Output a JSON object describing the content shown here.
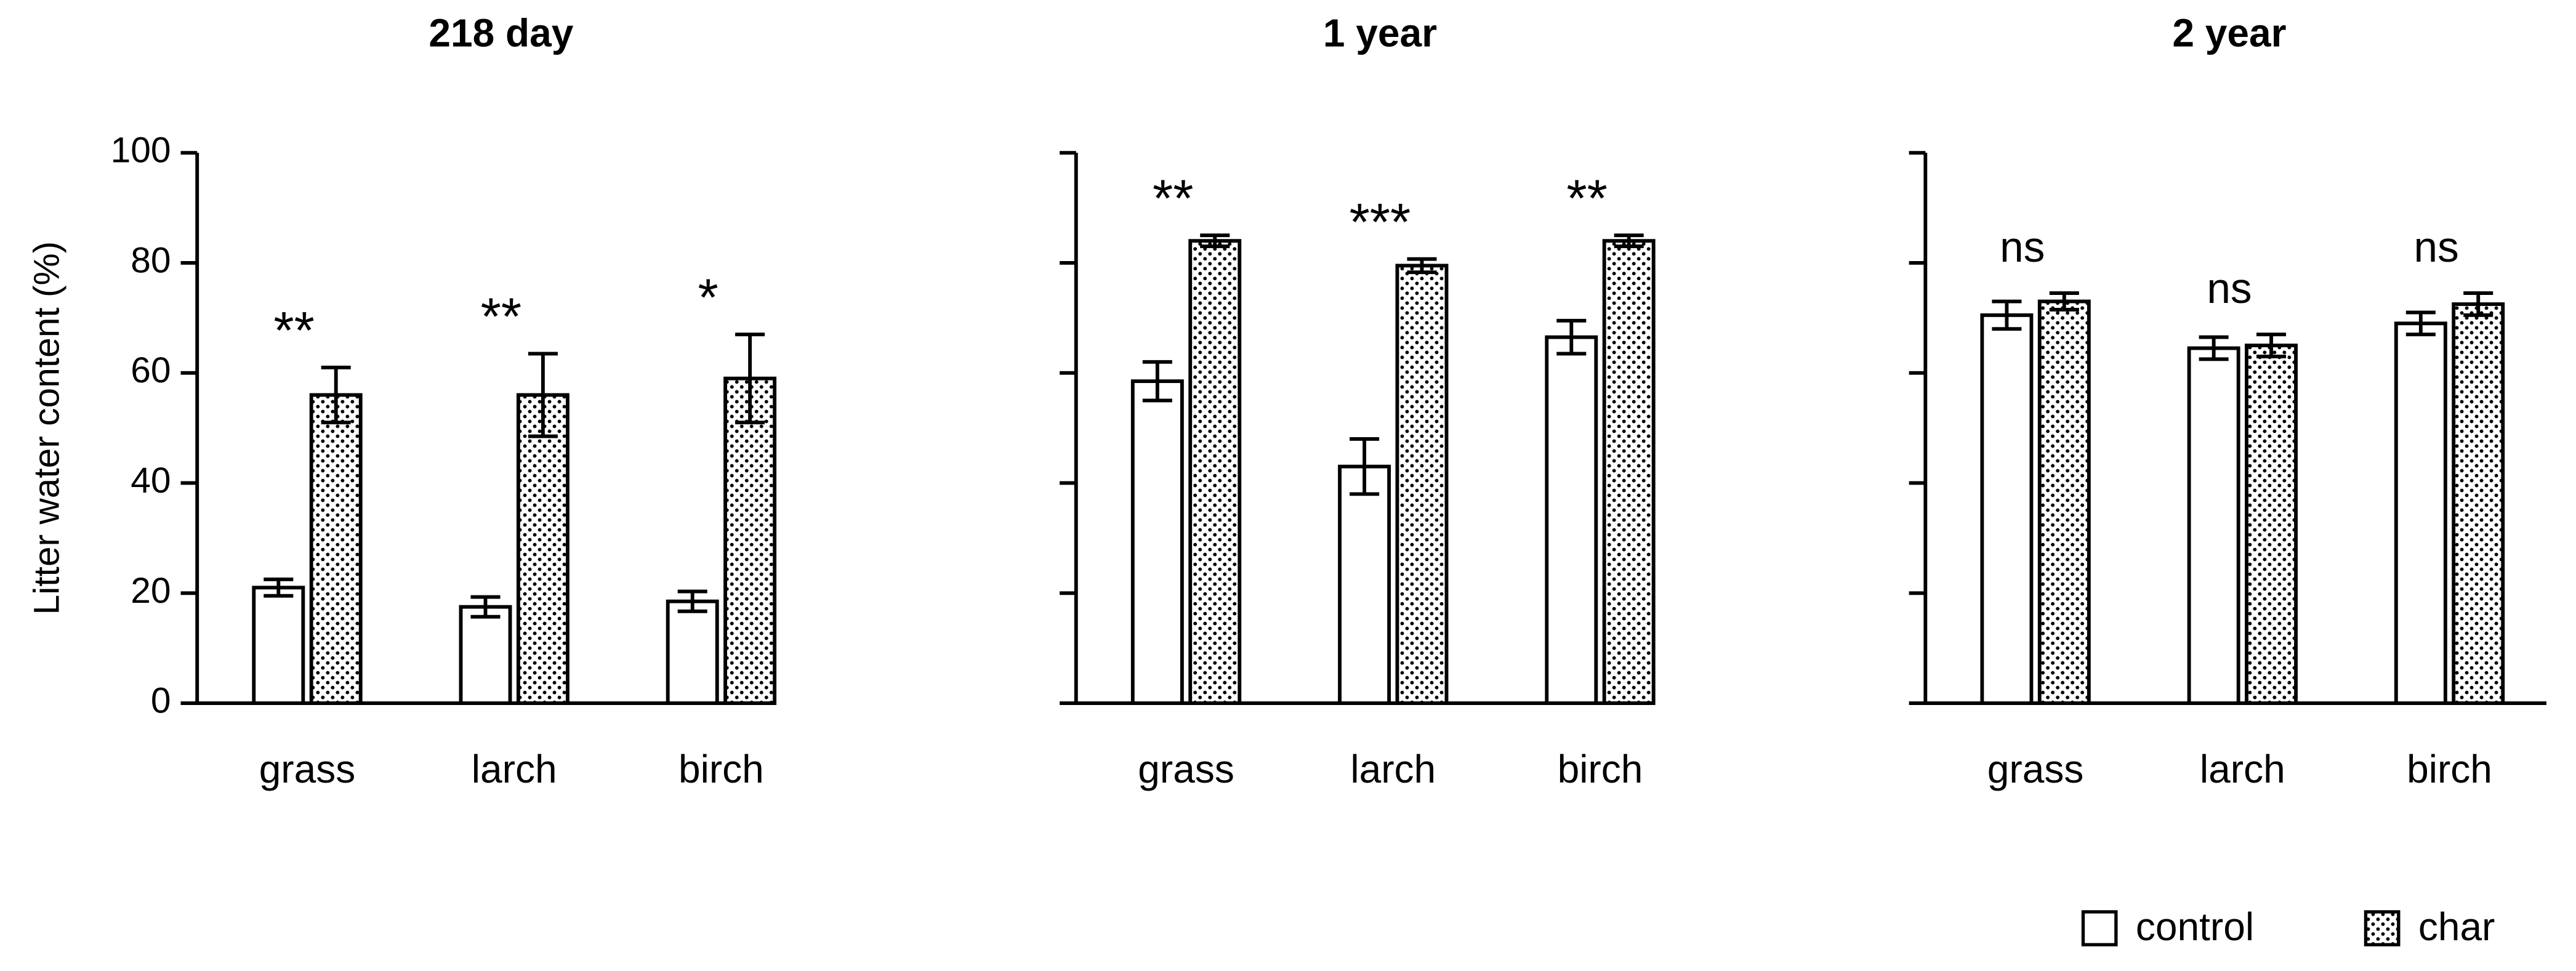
{
  "chart_data": [
    {
      "type": "bar",
      "title": "218 day",
      "ylabel": "Litter water content (%)",
      "categories": [
        "grass",
        "larch",
        "birch"
      ],
      "series": [
        {
          "name": "control",
          "color": "#ffffff",
          "values": [
            21,
            17.5,
            18.5
          ],
          "errors": [
            1.5,
            1.8,
            1.8
          ]
        },
        {
          "name": "char",
          "color": "#ffffff",
          "pattern": "dots",
          "values": [
            56,
            56,
            59
          ],
          "errors": [
            5,
            7.5,
            8
          ]
        }
      ],
      "annotations": [
        "**",
        "**",
        "*"
      ],
      "ylim": [
        0,
        100
      ],
      "yticks": [
        0,
        20,
        40,
        60,
        80,
        100
      ],
      "ytick_labels": true
    },
    {
      "type": "bar",
      "title": "1 year",
      "categories": [
        "grass",
        "larch",
        "birch"
      ],
      "series": [
        {
          "name": "control",
          "color": "#ffffff",
          "values": [
            58.5,
            43,
            66.5
          ],
          "errors": [
            3.5,
            5,
            3
          ]
        },
        {
          "name": "char",
          "color": "#ffffff",
          "pattern": "dots",
          "values": [
            84,
            79.5,
            84
          ],
          "errors": [
            1,
            1.2,
            1
          ]
        }
      ],
      "annotations": [
        "**",
        "***",
        "**"
      ],
      "ylim": [
        0,
        100
      ],
      "yticks": [
        0,
        20,
        40,
        60,
        80,
        100
      ],
      "ytick_labels": false
    },
    {
      "type": "bar",
      "title": "2 year",
      "categories": [
        "grass",
        "larch",
        "birch"
      ],
      "series": [
        {
          "name": "control",
          "color": "#ffffff",
          "values": [
            70.5,
            64.5,
            69
          ],
          "errors": [
            2.5,
            2,
            2
          ]
        },
        {
          "name": "char",
          "color": "#ffffff",
          "pattern": "dots",
          "values": [
            73,
            65,
            72.5
          ],
          "errors": [
            1.5,
            2,
            2
          ]
        }
      ],
      "annotations": [
        "ns",
        "ns",
        "ns"
      ],
      "ylim": [
        0,
        100
      ],
      "yticks": [
        0,
        20,
        40,
        60,
        80,
        100
      ],
      "ytick_labels": false
    }
  ]
}
